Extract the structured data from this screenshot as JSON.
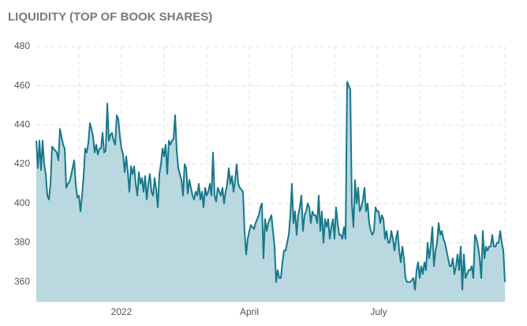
{
  "chart_data": {
    "type": "area",
    "title": "LIQUIDITY (TOP OF BOOK SHARES)",
    "color": "#17788c",
    "fill_color": "#b9d8df",
    "ylim": [
      350,
      480
    ],
    "yticks": [
      360,
      380,
      400,
      420,
      440,
      460,
      480
    ],
    "grid": true,
    "categories": [
      null,
      null,
      null,
      null,
      null,
      null,
      null,
      null,
      null,
      null,
      null,
      null,
      null,
      null,
      null,
      null,
      null,
      null,
      null,
      null,
      null,
      null,
      null,
      null,
      null,
      null,
      null,
      null,
      null,
      null,
      null,
      null,
      null,
      null,
      null,
      null,
      null,
      null,
      null,
      null,
      null,
      null,
      null,
      null,
      null,
      null,
      null,
      null,
      null,
      null,
      null,
      null,
      null,
      null,
      "2022",
      null,
      null,
      null,
      null,
      null,
      null,
      null,
      null,
      null,
      null,
      null,
      null,
      null,
      null,
      null,
      null,
      null,
      null,
      null,
      null,
      null,
      null,
      null,
      null,
      null,
      null,
      null,
      null,
      null,
      null,
      null,
      null,
      null,
      null,
      null,
      null,
      null,
      null,
      null,
      null,
      null,
      null,
      null,
      null,
      null,
      null,
      null,
      null,
      null,
      null,
      null,
      null,
      null,
      null,
      null,
      null,
      null,
      null,
      null,
      null,
      null,
      null,
      null,
      null,
      null,
      null,
      null,
      null,
      null,
      null,
      null,
      null,
      null,
      null,
      null,
      null,
      null,
      null,
      null,
      null,
      "April",
      null,
      null,
      null,
      null,
      null,
      null,
      null,
      null,
      null,
      null,
      null,
      null,
      null,
      null,
      null,
      null,
      null,
      null,
      null,
      null,
      null,
      null,
      null,
      null,
      null,
      null,
      null,
      null,
      null,
      null,
      null,
      null,
      null,
      null,
      null,
      null,
      null,
      null,
      null,
      null,
      null,
      null,
      null,
      null,
      null,
      null,
      null,
      null,
      null,
      null,
      null,
      null,
      null,
      null,
      null,
      null,
      null,
      null,
      null,
      null,
      null,
      null,
      null,
      null,
      null,
      null,
      null,
      null,
      null,
      null,
      null,
      null,
      null,
      null,
      null,
      null,
      null,
      null,
      null,
      null,
      null,
      "July",
      null,
      null,
      null,
      null,
      null,
      null,
      null,
      null,
      null,
      null,
      null,
      null,
      null,
      null,
      null,
      null,
      null,
      null,
      null,
      null,
      null,
      null,
      null,
      null,
      null,
      null,
      null,
      null,
      null,
      null,
      null,
      null,
      null,
      null,
      null,
      null,
      null,
      null,
      null,
      null,
      null,
      null,
      null,
      null,
      null,
      null,
      null,
      null,
      null,
      null,
      null,
      null,
      null,
      null,
      null,
      null,
      null,
      null,
      null,
      null,
      null,
      null,
      null,
      null,
      null,
      null,
      null,
      null,
      null,
      null,
      null,
      null,
      null,
      null,
      null,
      null,
      null,
      null,
      null,
      null
    ],
    "values": [
      432,
      418,
      432,
      417,
      432,
      420,
      415,
      404,
      402,
      410,
      429,
      428,
      427,
      426,
      422,
      438,
      434,
      430,
      428,
      408,
      410,
      411,
      414,
      418,
      422,
      410,
      403,
      404,
      396,
      404,
      414,
      428,
      426,
      431,
      441,
      438,
      434,
      426,
      430,
      425,
      428,
      428,
      436,
      426,
      427,
      451,
      432,
      435,
      436,
      432,
      430,
      445,
      443,
      434,
      428,
      425,
      416,
      424,
      416,
      406,
      419,
      415,
      419,
      410,
      404,
      416,
      410,
      413,
      406,
      414,
      402,
      410,
      415,
      406,
      404,
      413,
      407,
      398,
      415,
      420,
      428,
      424,
      430,
      415,
      432,
      430,
      432,
      433,
      445,
      427,
      418,
      415,
      412,
      404,
      420,
      418,
      405,
      412,
      408,
      404,
      402,
      406,
      404,
      410,
      402,
      406,
      398,
      408,
      404,
      406,
      410,
      404,
      426,
      404,
      401,
      408,
      406,
      404,
      408,
      400,
      406,
      410,
      418,
      410,
      414,
      406,
      412,
      420,
      410,
      408,
      407,
      406,
      386,
      374,
      382,
      386,
      389,
      388,
      387,
      390,
      392,
      394,
      398,
      400,
      372,
      392,
      386,
      390,
      392,
      394,
      386,
      378,
      360,
      366,
      362,
      362,
      370,
      376,
      376,
      380,
      384,
      394,
      410,
      390,
      396,
      384,
      394,
      398,
      404,
      386,
      394,
      396,
      400,
      398,
      390,
      396,
      394,
      394,
      390,
      404,
      386,
      396,
      380,
      392,
      388,
      392,
      382,
      388,
      392,
      382,
      398,
      390,
      384,
      384,
      382,
      388,
      382,
      462,
      460,
      458,
      400,
      388,
      412,
      400,
      408,
      396,
      398,
      402,
      408,
      396,
      400,
      390,
      386,
      384,
      386,
      398,
      396,
      396,
      390,
      394,
      392,
      382,
      386,
      380,
      380,
      386,
      382,
      376,
      382,
      386,
      376,
      370,
      378,
      372,
      362,
      360,
      360,
      360,
      361,
      362,
      356,
      366,
      370,
      362,
      368,
      364,
      370,
      366,
      380,
      372,
      378,
      388,
      368,
      376,
      380,
      390,
      384,
      386,
      382,
      380,
      376,
      372,
      368,
      368,
      372,
      364,
      368,
      374,
      366,
      378,
      356,
      374,
      362,
      364,
      366,
      366,
      368,
      362,
      384,
      382,
      378,
      372,
      362,
      386,
      372,
      378,
      376,
      378,
      378,
      384,
      378,
      378,
      380,
      380,
      386,
      380,
      376,
      360
    ]
  }
}
